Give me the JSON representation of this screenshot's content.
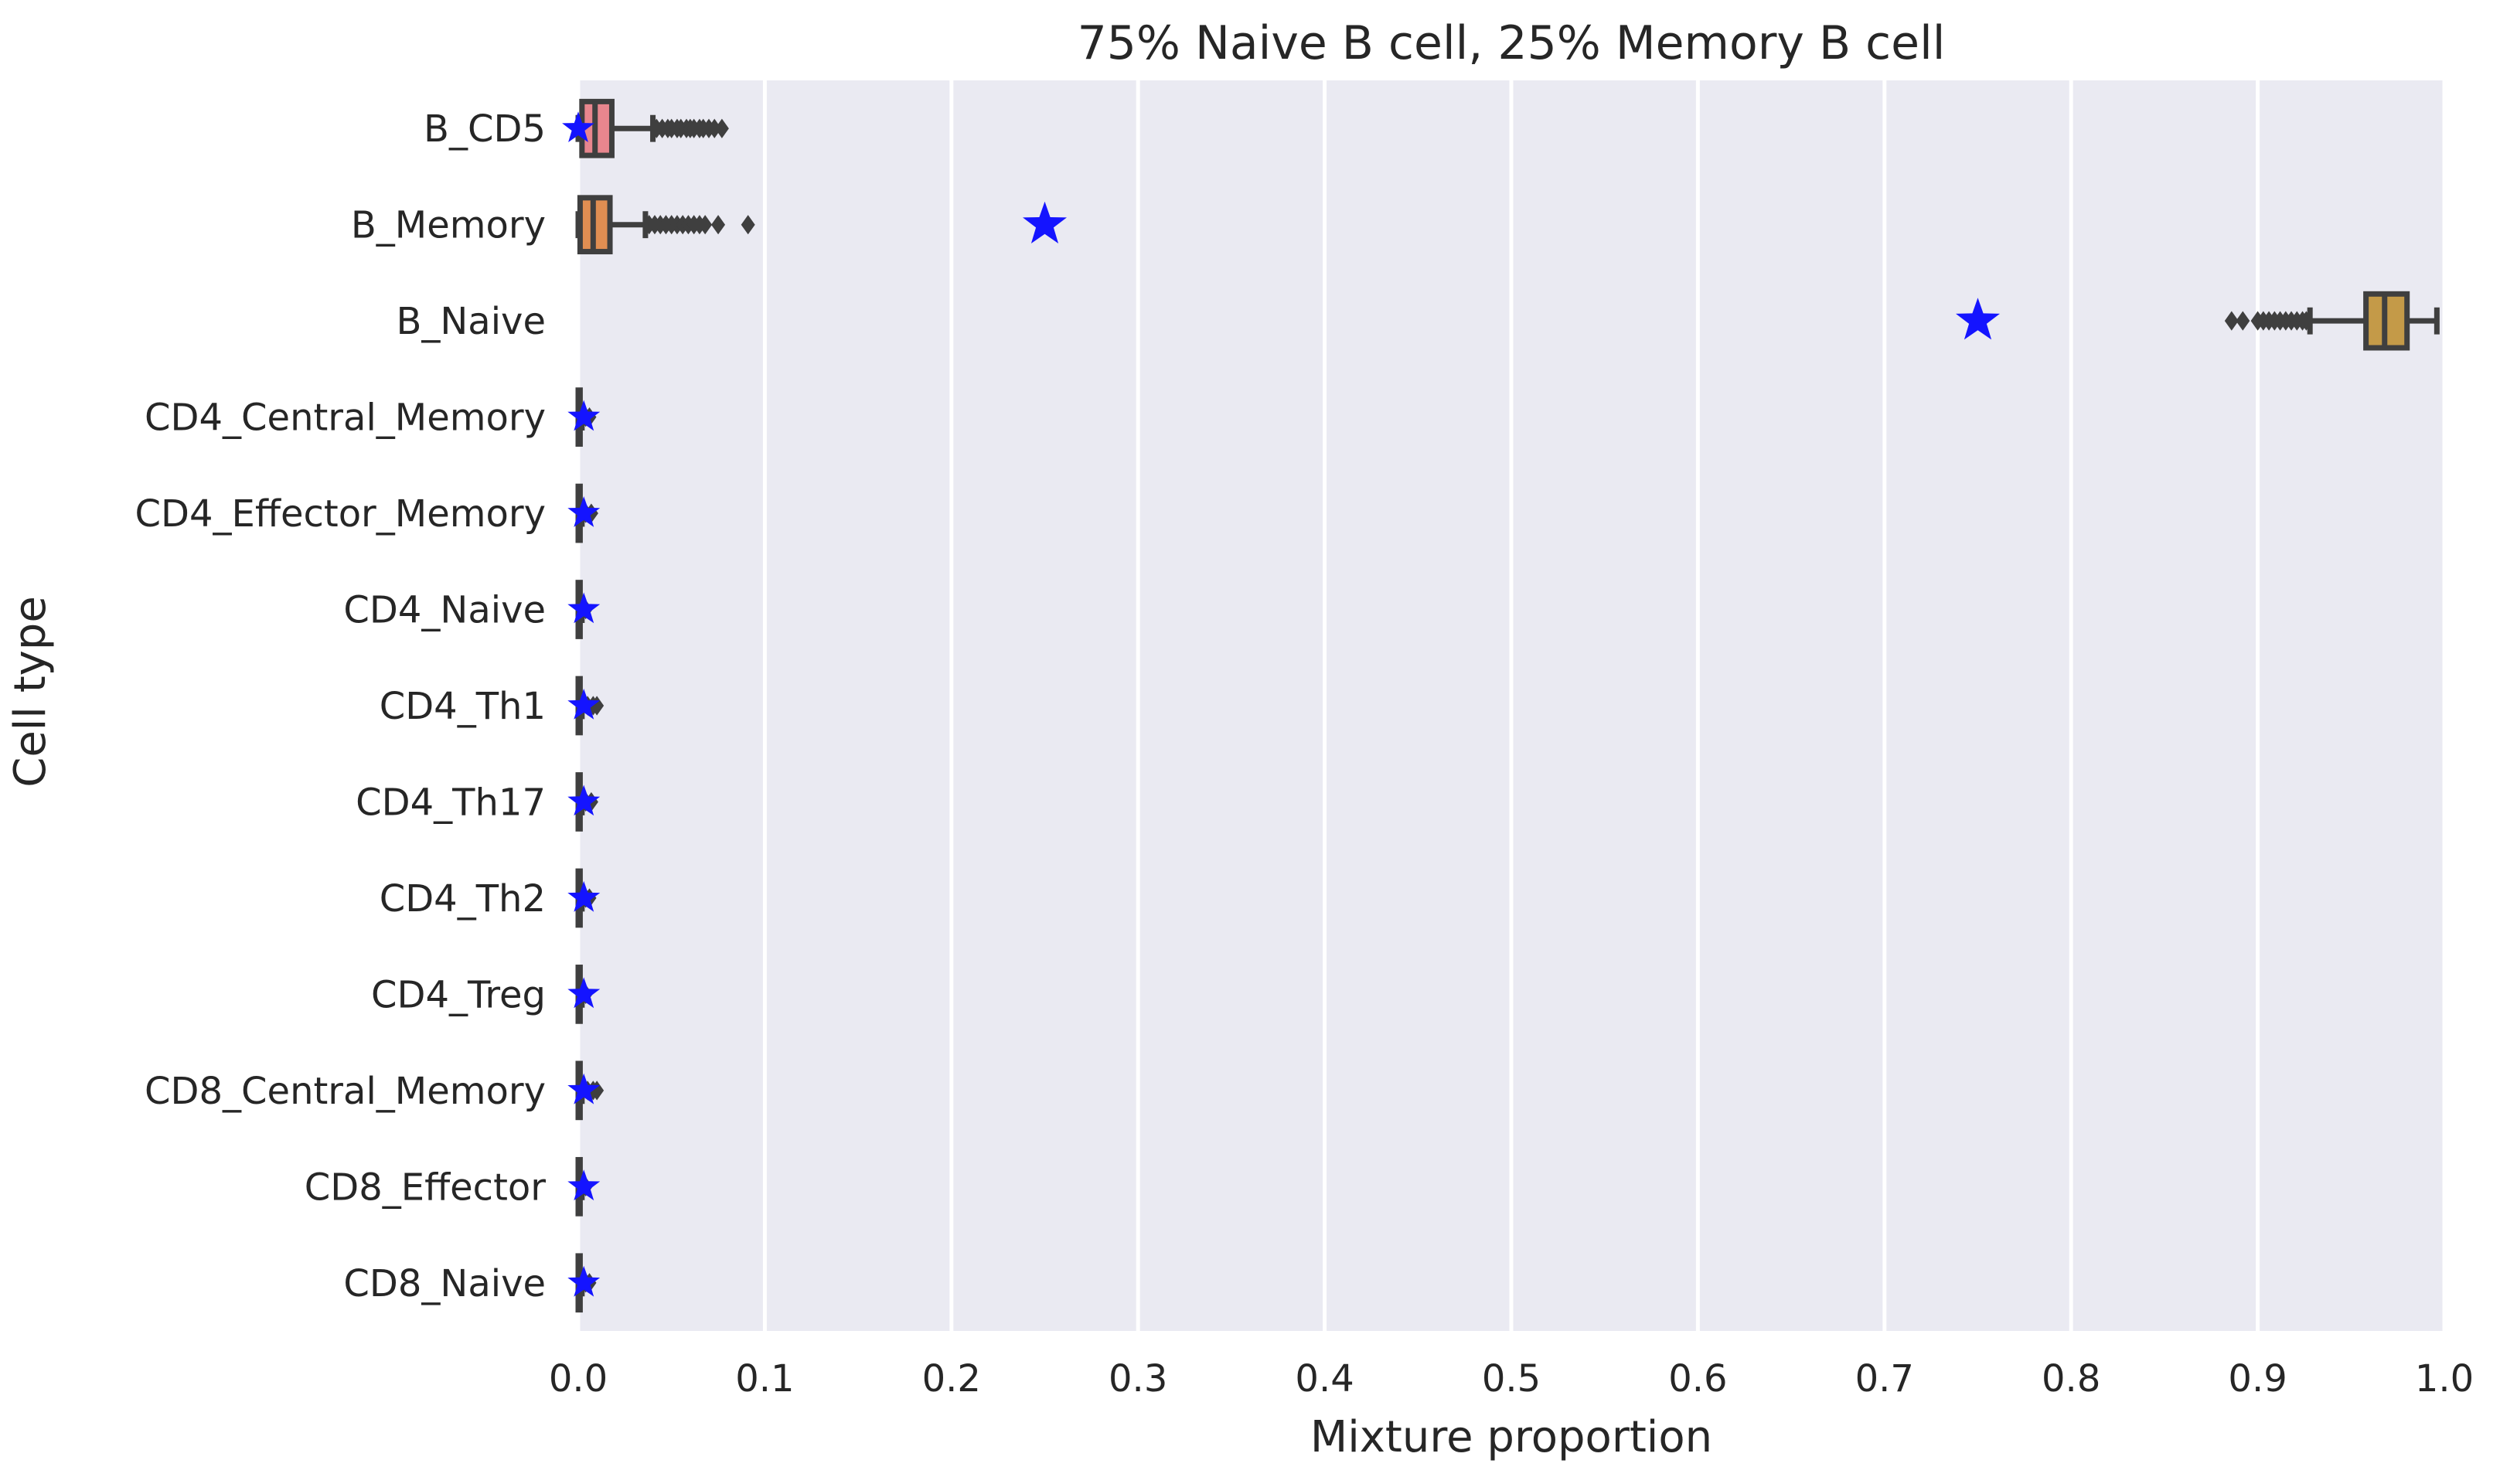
{
  "chart_data": {
    "type": "box",
    "orientation": "horizontal",
    "title": "75% Naive B cell, 25% Memory B cell",
    "xlabel": "Mixture proportion",
    "ylabel": "Cell type",
    "xlim": [
      0.0,
      1.0
    ],
    "xticks": [
      "0.0",
      "0.1",
      "0.2",
      "0.3",
      "0.4",
      "0.5",
      "0.6",
      "0.7",
      "0.8",
      "0.9",
      "1.0"
    ],
    "grid": true,
    "background": "#eaeaf2",
    "marker_color": "#1414ff",
    "categories": [
      "B_CD5",
      "B_Memory",
      "B_Naive",
      "CD4_Central_Memory",
      "CD4_Effector_Memory",
      "CD4_Naive",
      "CD4_Th1",
      "CD4_Th17",
      "CD4_Th2",
      "CD4_Treg",
      "CD8_Central_Memory",
      "CD8_Effector",
      "CD8_Naive"
    ],
    "true_proportions": [
      0.0,
      0.25,
      0.75,
      0.003,
      0.003,
      0.003,
      0.003,
      0.003,
      0.003,
      0.003,
      0.003,
      0.003,
      0.003
    ],
    "boxes": [
      {
        "whisker_low": 0.0,
        "q1": 0.002,
        "median": 0.009,
        "q3": 0.018,
        "whisker_high": 0.04,
        "color": "#e8868e",
        "outliers": [
          0.042,
          0.045,
          0.048,
          0.05,
          0.053,
          0.055,
          0.058,
          0.06,
          0.062,
          0.065,
          0.067,
          0.07,
          0.073,
          0.077
        ]
      },
      {
        "whisker_low": 0.0,
        "q1": 0.001,
        "median": 0.008,
        "q3": 0.017,
        "whisker_high": 0.036,
        "color": "#e08e52",
        "outliers": [
          0.038,
          0.041,
          0.044,
          0.047,
          0.05,
          0.053,
          0.056,
          0.059,
          0.062,
          0.065,
          0.068,
          0.075,
          0.091
        ]
      },
      {
        "whisker_low": 0.928,
        "q1": 0.958,
        "median": 0.968,
        "q3": 0.98,
        "whisker_high": 0.996,
        "color": "#c49a48",
        "outliers": [
          0.886,
          0.892,
          0.9,
          0.903,
          0.906,
          0.909,
          0.912,
          0.915,
          0.918,
          0.921,
          0.924,
          0.926
        ]
      },
      {
        "whisker_low": 0.0,
        "q1": 0.0,
        "median": 0.0,
        "q3": 0.001,
        "whisker_high": 0.002,
        "color": "#a8a040",
        "outliers": [
          0.004,
          0.006
        ]
      },
      {
        "whisker_low": 0.0,
        "q1": 0.0,
        "median": 0.0,
        "q3": 0.001,
        "whisker_high": 0.002,
        "color": "#88b048",
        "outliers": [
          0.004,
          0.007
        ]
      },
      {
        "whisker_low": 0.0,
        "q1": 0.0,
        "median": 0.0,
        "q3": 0.001,
        "whisker_high": 0.002,
        "color": "#4cb070",
        "outliers": [
          0.004
        ]
      },
      {
        "whisker_low": 0.0,
        "q1": 0.0,
        "median": 0.0,
        "q3": 0.001,
        "whisker_high": 0.002,
        "color": "#44b0a0",
        "outliers": [
          0.005,
          0.008,
          0.01
        ]
      },
      {
        "whisker_low": 0.0,
        "q1": 0.0,
        "median": 0.0,
        "q3": 0.001,
        "whisker_high": 0.002,
        "color": "#48a8c0",
        "outliers": [
          0.004,
          0.007
        ]
      },
      {
        "whisker_low": 0.0,
        "q1": 0.0,
        "median": 0.0,
        "q3": 0.001,
        "whisker_high": 0.002,
        "color": "#5098d8",
        "outliers": [
          0.004,
          0.006
        ]
      },
      {
        "whisker_low": 0.0,
        "q1": 0.0,
        "median": 0.0,
        "q3": 0.001,
        "whisker_high": 0.002,
        "color": "#8890e0",
        "outliers": [
          0.004
        ]
      },
      {
        "whisker_low": 0.0,
        "q1": 0.0,
        "median": 0.0,
        "q3": 0.001,
        "whisker_high": 0.002,
        "color": "#b888e0",
        "outliers": [
          0.005,
          0.008,
          0.01
        ]
      },
      {
        "whisker_low": 0.0,
        "q1": 0.0,
        "median": 0.0,
        "q3": 0.001,
        "whisker_high": 0.002,
        "color": "#d880c8",
        "outliers": [
          0.004
        ]
      },
      {
        "whisker_low": 0.0,
        "q1": 0.0,
        "median": 0.0,
        "q3": 0.001,
        "whisker_high": 0.002,
        "color": "#e888a8",
        "outliers": [
          0.004,
          0.006
        ]
      }
    ]
  }
}
